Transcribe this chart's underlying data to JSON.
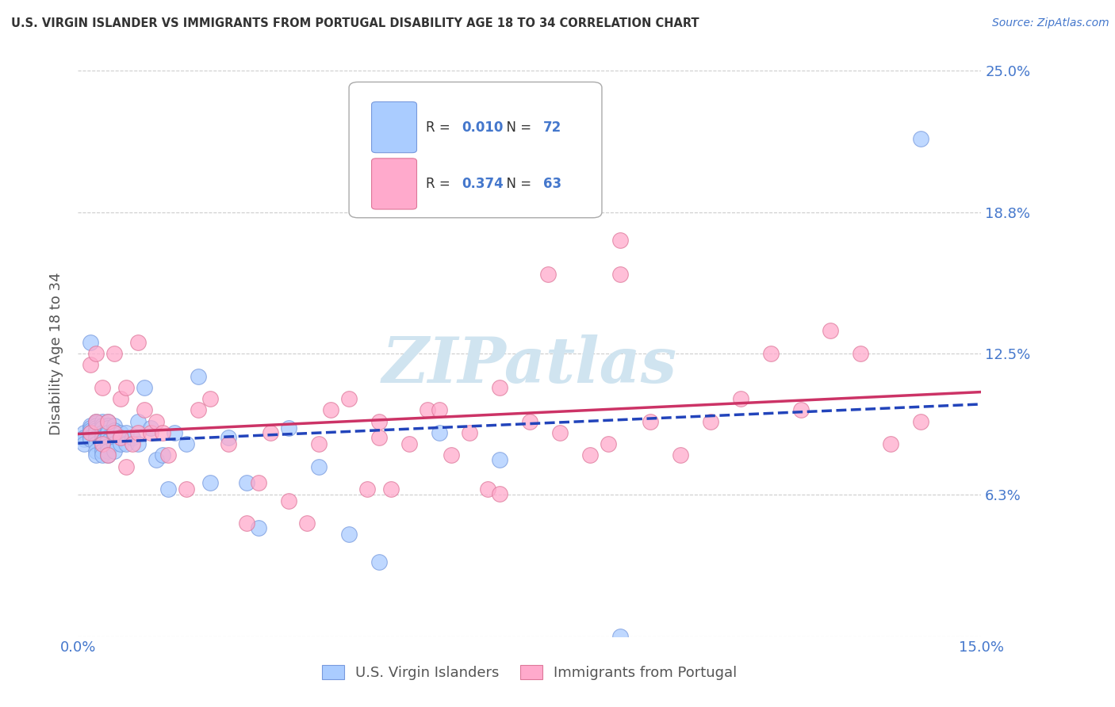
{
  "title": "U.S. VIRGIN ISLANDER VS IMMIGRANTS FROM PORTUGAL DISABILITY AGE 18 TO 34 CORRELATION CHART",
  "source": "Source: ZipAtlas.com",
  "ylabel": "Disability Age 18 to 34",
  "x_min": 0.0,
  "x_max": 0.15,
  "y_min": 0.0,
  "y_max": 0.25,
  "x_ticks": [
    0.0,
    0.15
  ],
  "x_tick_labels": [
    "0.0%",
    "15.0%"
  ],
  "y_ticks": [
    0.0,
    0.0625,
    0.125,
    0.1875,
    0.25
  ],
  "y_tick_labels": [
    "",
    "6.3%",
    "12.5%",
    "18.8%",
    "25.0%"
  ],
  "grid_color": "#cccccc",
  "background_color": "#ffffff",
  "series1_label": "U.S. Virgin Islanders",
  "series1_R": "0.010",
  "series1_N": 72,
  "series1_color": "#aaccff",
  "series1_edge_color": "#7799dd",
  "series1_line_color": "#2244bb",
  "series2_label": "Immigrants from Portugal",
  "series2_R": "0.374",
  "series2_N": 63,
  "series2_color": "#ffaacc",
  "series2_edge_color": "#dd7799",
  "series2_line_color": "#cc3366",
  "watermark": "ZIPatlas",
  "watermark_color": "#d0e4f0",
  "title_color": "#333333",
  "axis_label_color": "#4477cc",
  "legend_R_color": "#4477cc",
  "series1_x": [
    0.001,
    0.001,
    0.001,
    0.001,
    0.002,
    0.002,
    0.002,
    0.002,
    0.002,
    0.002,
    0.002,
    0.003,
    0.003,
    0.003,
    0.003,
    0.003,
    0.003,
    0.003,
    0.003,
    0.003,
    0.003,
    0.004,
    0.004,
    0.004,
    0.004,
    0.004,
    0.004,
    0.004,
    0.004,
    0.004,
    0.005,
    0.005,
    0.005,
    0.005,
    0.005,
    0.005,
    0.005,
    0.005,
    0.005,
    0.006,
    0.006,
    0.006,
    0.006,
    0.006,
    0.007,
    0.007,
    0.007,
    0.008,
    0.008,
    0.009,
    0.01,
    0.01,
    0.011,
    0.012,
    0.013,
    0.014,
    0.015,
    0.016,
    0.018,
    0.02,
    0.022,
    0.025,
    0.028,
    0.03,
    0.035,
    0.04,
    0.045,
    0.05,
    0.06,
    0.07,
    0.09,
    0.14
  ],
  "series1_y": [
    0.09,
    0.088,
    0.087,
    0.085,
    0.093,
    0.092,
    0.091,
    0.09,
    0.088,
    0.087,
    0.13,
    0.095,
    0.094,
    0.093,
    0.092,
    0.091,
    0.09,
    0.088,
    0.085,
    0.082,
    0.08,
    0.095,
    0.093,
    0.092,
    0.09,
    0.088,
    0.086,
    0.084,
    0.082,
    0.08,
    0.095,
    0.093,
    0.092,
    0.09,
    0.088,
    0.086,
    0.084,
    0.082,
    0.08,
    0.093,
    0.091,
    0.089,
    0.085,
    0.082,
    0.09,
    0.088,
    0.085,
    0.09,
    0.085,
    0.088,
    0.095,
    0.085,
    0.11,
    0.092,
    0.078,
    0.08,
    0.065,
    0.09,
    0.085,
    0.115,
    0.068,
    0.088,
    0.068,
    0.048,
    0.092,
    0.075,
    0.045,
    0.033,
    0.09,
    0.078,
    0.0,
    0.22
  ],
  "series2_x": [
    0.002,
    0.002,
    0.003,
    0.003,
    0.004,
    0.004,
    0.005,
    0.005,
    0.006,
    0.006,
    0.007,
    0.007,
    0.008,
    0.008,
    0.009,
    0.01,
    0.01,
    0.011,
    0.012,
    0.013,
    0.014,
    0.015,
    0.018,
    0.02,
    0.022,
    0.025,
    0.028,
    0.03,
    0.032,
    0.035,
    0.038,
    0.04,
    0.042,
    0.045,
    0.048,
    0.05,
    0.052,
    0.055,
    0.058,
    0.06,
    0.062,
    0.065,
    0.068,
    0.07,
    0.075,
    0.078,
    0.08,
    0.085,
    0.088,
    0.09,
    0.095,
    0.1,
    0.105,
    0.11,
    0.115,
    0.12,
    0.125,
    0.13,
    0.135,
    0.14,
    0.09,
    0.07,
    0.05
  ],
  "series2_y": [
    0.09,
    0.12,
    0.095,
    0.125,
    0.085,
    0.11,
    0.08,
    0.095,
    0.09,
    0.125,
    0.088,
    0.105,
    0.075,
    0.11,
    0.085,
    0.09,
    0.13,
    0.1,
    0.09,
    0.095,
    0.09,
    0.08,
    0.065,
    0.1,
    0.105,
    0.085,
    0.05,
    0.068,
    0.09,
    0.06,
    0.05,
    0.085,
    0.1,
    0.105,
    0.065,
    0.095,
    0.065,
    0.085,
    0.1,
    0.1,
    0.08,
    0.09,
    0.065,
    0.11,
    0.095,
    0.16,
    0.09,
    0.08,
    0.085,
    0.16,
    0.095,
    0.08,
    0.095,
    0.105,
    0.125,
    0.1,
    0.135,
    0.125,
    0.085,
    0.095,
    0.175,
    0.063,
    0.088
  ]
}
